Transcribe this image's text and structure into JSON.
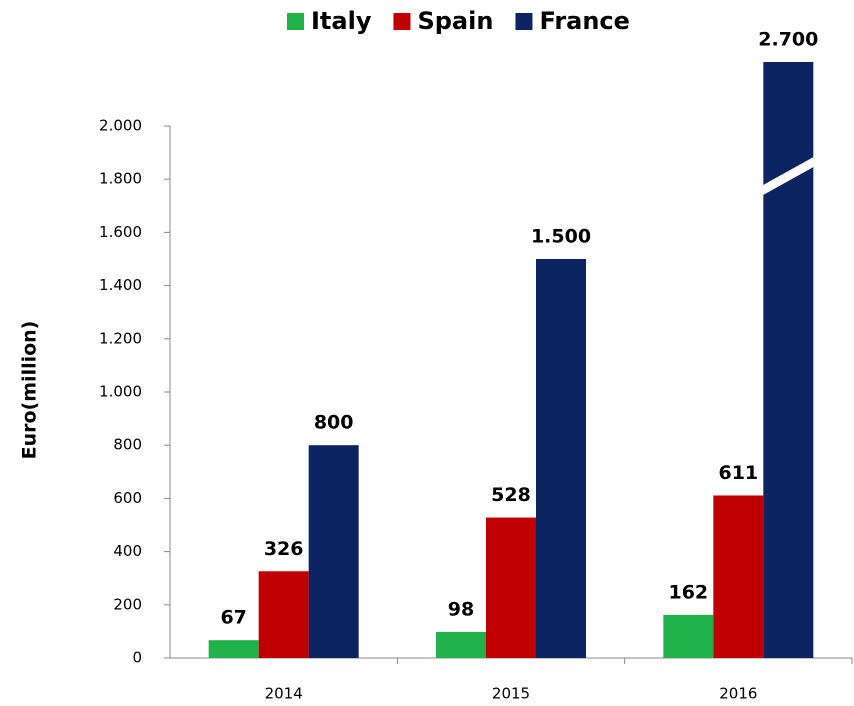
{
  "chart_data": {
    "type": "bar",
    "y_label": "Euro(million)",
    "categories": [
      "2014",
      "2015",
      "2016"
    ],
    "series": [
      {
        "name": "Italy",
        "color": "#21b24b",
        "values": [
          67,
          98,
          162
        ]
      },
      {
        "name": "Spain",
        "color": "#c00000",
        "values": [
          326,
          528,
          611
        ]
      },
      {
        "name": "France",
        "color": "#0d2463",
        "values": [
          800,
          1500,
          2700
        ],
        "value_labels": [
          "800",
          "1.500",
          "2.700"
        ]
      }
    ],
    "ylim": [
      0,
      2000
    ],
    "yticks": [
      0,
      200,
      400,
      600,
      800,
      {
        "value": 1000,
        "label": "1.000"
      },
      {
        "value": 1200,
        "label": "1.200"
      },
      {
        "value": 1400,
        "label": "1.400"
      },
      {
        "value": 1600,
        "label": "1.600"
      },
      {
        "value": 1800,
        "label": "1.800"
      },
      {
        "value": 2000,
        "label": "2.000"
      }
    ],
    "legend": "top"
  }
}
